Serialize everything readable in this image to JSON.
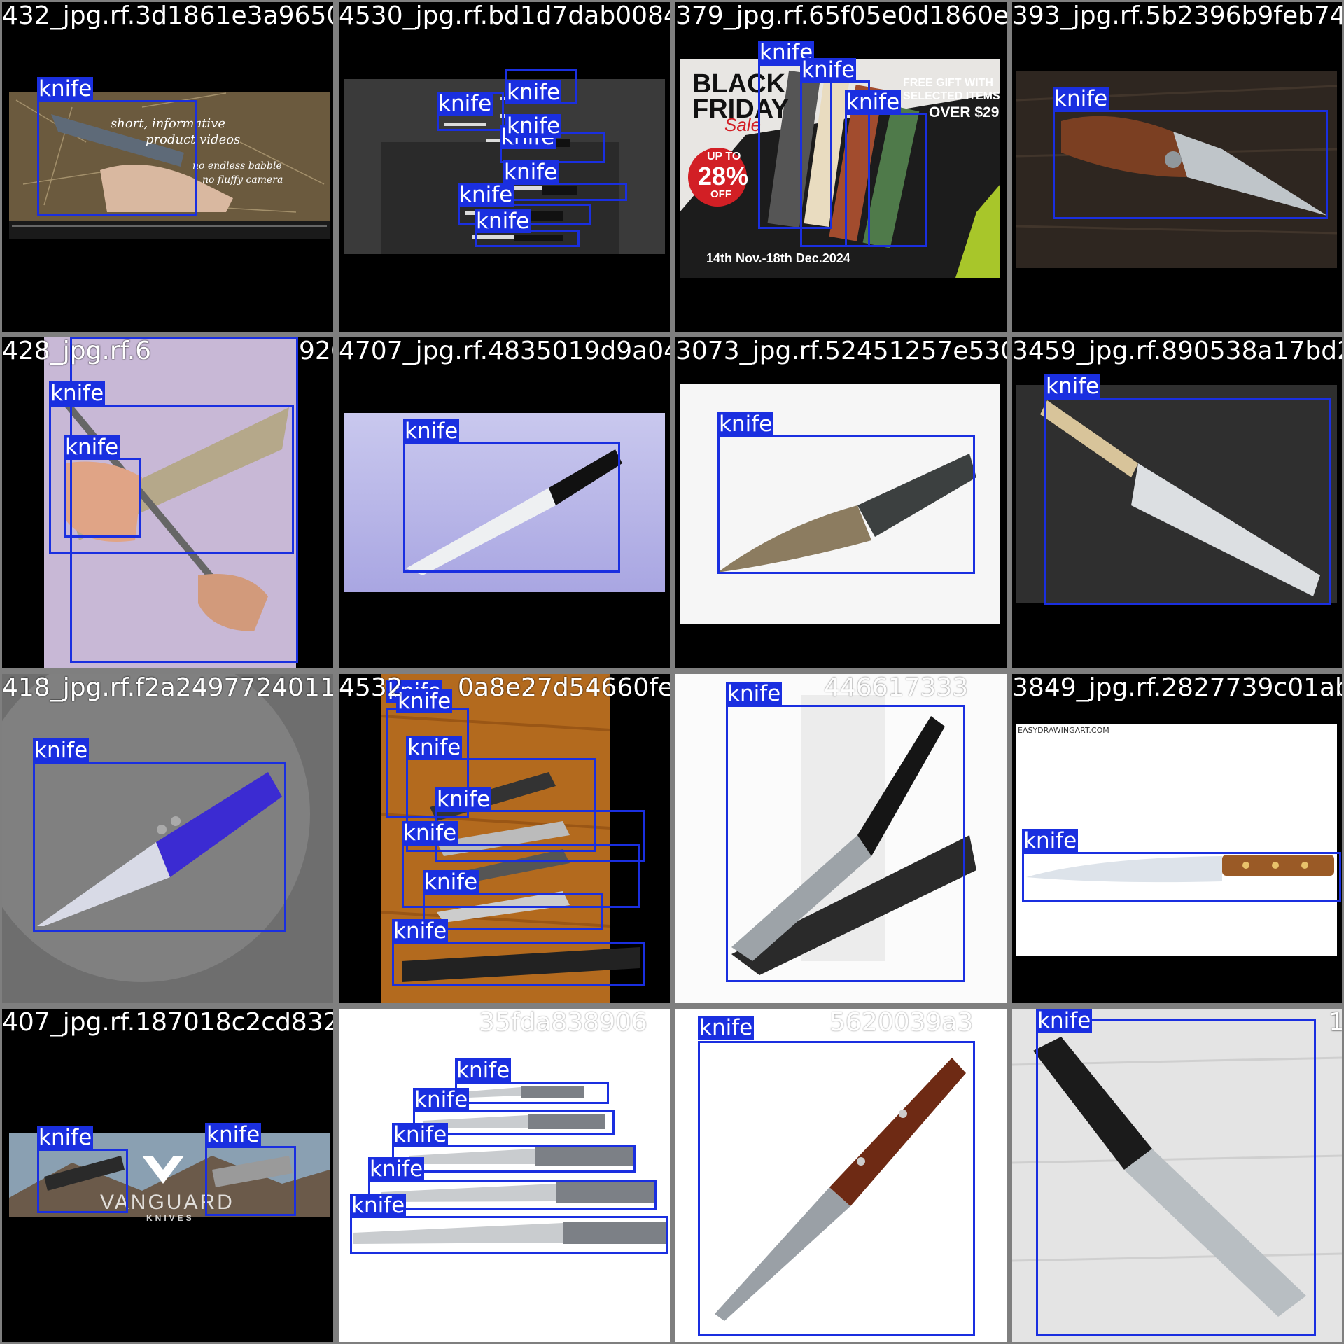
{
  "colors": {
    "box": "#1a2fe0",
    "label_text": "#ffffff",
    "grid": "#808080"
  },
  "tiles": [
    {
      "file": "432_jpg.rf.3d1861e3a96507",
      "overlay_text": [
        "short, informative",
        "product videos",
        "no endless babble",
        "no fluffy camera"
      ],
      "detections": [
        "knife"
      ]
    },
    {
      "file": "4530_jpg.rf.bd1d7dab0084e4ee3e",
      "detections": [
        "knife",
        "knife",
        "knife",
        "knife",
        "knife",
        "knife",
        "knife"
      ]
    },
    {
      "file": "379_jpg.rf.65f05e0d1860ea00f7",
      "banner": {
        "l1": "BLACK",
        "l2": "FRIDAY",
        "l3": "Sale",
        "gift": "FREE GIFT WITH SELECTED ITEMS",
        "over": "OVER $29",
        "upto": "UP TO",
        "pct": "28%",
        "off": "OFF",
        "dates": "14th Nov.-18th Dec.2024"
      },
      "detections": [
        "knife",
        "knife",
        "knife"
      ]
    },
    {
      "file": "393_jpg.rf.5b2396b9feb74b8",
      "detections": [
        "knife"
      ]
    },
    {
      "file": "428_jpg.rf.6",
      "file_tail": "926",
      "detections": [
        "knife",
        "knife",
        "knife"
      ]
    },
    {
      "file": "4707_jpg.rf.4835019d9a04e089",
      "detections": [
        "knife"
      ]
    },
    {
      "file": "3073_jpg.rf.52451257e5308c",
      "detections": [
        "knife"
      ]
    },
    {
      "file": "3459_jpg.rf.890538a17bd284c",
      "detections": [
        "knife"
      ]
    },
    {
      "file": "418_jpg.rf.f2a2497724011da",
      "detections": [
        "knife"
      ]
    },
    {
      "file": "4532",
      "file_tail": "0a8e27d54660fe3b",
      "detections": [
        "knife",
        "knife",
        "knife",
        "knife",
        "knife",
        "knife",
        "knife"
      ]
    },
    {
      "file": "",
      "file_tail": "446617333",
      "detections": [
        "knife"
      ]
    },
    {
      "file": "3849_jpg.rf.2827739c01abac",
      "site": "EASYDRAWINGART.COM",
      "detections": [
        "knife"
      ]
    },
    {
      "file": "407_jpg.rf.187018c2cd83254",
      "logo": "VANGUARD",
      "logo_sub": "KNIVES",
      "detections": [
        "knife",
        "knife"
      ]
    },
    {
      "file": "",
      "file_tail": "35fda838906",
      "detections": [
        "knife",
        "knife",
        "knife",
        "knife",
        "knife"
      ]
    },
    {
      "file": "",
      "file_tail": "5620039a3",
      "detections": [
        "knife"
      ]
    },
    {
      "file": "",
      "file_tail": "1",
      "detections": [
        "knife"
      ]
    }
  ]
}
